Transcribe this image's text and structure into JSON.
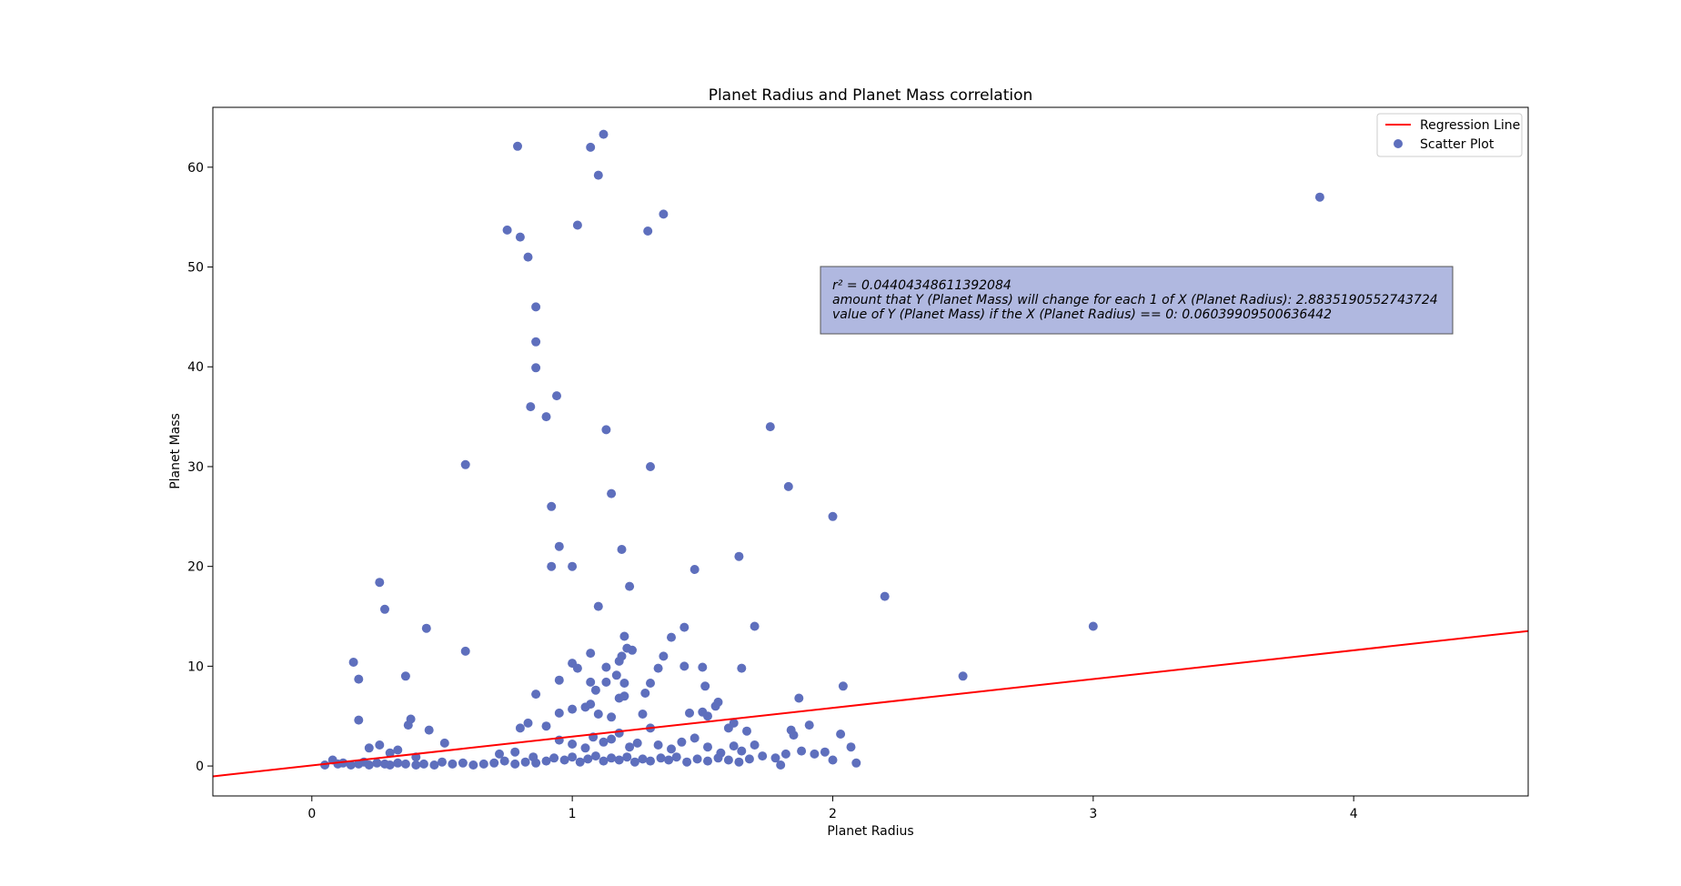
{
  "chart_data": {
    "type": "scatter",
    "title": "Planet Radius and Planet Mass correlation",
    "xlabel": "Planet Radius",
    "ylabel": "Planet Mass",
    "xlim": [
      -0.38,
      4.67
    ],
    "ylim": [
      -3.0,
      66.0
    ],
    "xticks": [
      0,
      1,
      2,
      3,
      4
    ],
    "yticks": [
      0,
      10,
      20,
      30,
      40,
      50,
      60
    ],
    "grid": false,
    "legend_placement": "top-right",
    "legend": [
      {
        "label": "Regression Line",
        "kind": "line",
        "color": "#ff0000"
      },
      {
        "label": "Scatter Plot",
        "kind": "marker",
        "color": "#5e6fbd"
      }
    ],
    "annotation": {
      "lines": [
        "r² = 0.04404348611392084",
        "amount that Y (Planet Mass) will change for each 1 of X (Planet Radius): 2.8835190552743724",
        "value of Y (Planet Mass) if the X (Planet Radius) == 0: 0.06039909500636442"
      ],
      "box_color": "#b0b8e0"
    },
    "regression": {
      "slope": 2.8835190552743724,
      "intercept": 0.06039909500636442,
      "color": "#ff0000"
    },
    "scatter": {
      "color": "#5e6fbd",
      "points": [
        [
          0.79,
          62.1
        ],
        [
          1.07,
          62.0
        ],
        [
          1.12,
          63.3
        ],
        [
          1.1,
          59.2
        ],
        [
          0.75,
          53.7
        ],
        [
          0.8,
          53.0
        ],
        [
          1.02,
          54.2
        ],
        [
          1.29,
          53.6
        ],
        [
          1.35,
          55.3
        ],
        [
          0.83,
          51.0
        ],
        [
          0.86,
          46.0
        ],
        [
          0.86,
          42.5
        ],
        [
          0.86,
          39.9
        ],
        [
          0.94,
          37.1
        ],
        [
          0.84,
          36.0
        ],
        [
          0.9,
          35.0
        ],
        [
          1.13,
          33.7
        ],
        [
          0.59,
          30.2
        ],
        [
          1.3,
          30.0
        ],
        [
          1.76,
          34.0
        ],
        [
          1.83,
          28.0
        ],
        [
          0.92,
          26.0
        ],
        [
          1.15,
          27.3
        ],
        [
          2.0,
          25.0
        ],
        [
          0.95,
          22.0
        ],
        [
          0.92,
          20.0
        ],
        [
          1.0,
          20.0
        ],
        [
          1.19,
          21.7
        ],
        [
          1.47,
          19.7
        ],
        [
          1.64,
          21.0
        ],
        [
          2.2,
          17.0
        ],
        [
          0.26,
          18.4
        ],
        [
          0.28,
          15.7
        ],
        [
          1.1,
          16.0
        ],
        [
          1.22,
          18.0
        ],
        [
          0.44,
          13.8
        ],
        [
          1.2,
          13.0
        ],
        [
          1.38,
          12.9
        ],
        [
          1.43,
          13.9
        ],
        [
          1.7,
          14.0
        ],
        [
          3.0,
          14.0
        ],
        [
          3.87,
          57.0
        ],
        [
          0.16,
          10.4
        ],
        [
          0.18,
          8.7
        ],
        [
          0.36,
          9.0
        ],
        [
          0.59,
          11.5
        ],
        [
          1.0,
          10.3
        ],
        [
          1.02,
          9.8
        ],
        [
          1.07,
          11.3
        ],
        [
          1.13,
          9.9
        ],
        [
          1.18,
          10.5
        ],
        [
          1.19,
          11.0
        ],
        [
          1.21,
          11.8
        ],
        [
          1.23,
          11.6
        ],
        [
          1.33,
          9.8
        ],
        [
          1.35,
          11.0
        ],
        [
          1.43,
          10.0
        ],
        [
          1.5,
          9.9
        ],
        [
          1.65,
          9.8
        ],
        [
          0.86,
          7.2
        ],
        [
          0.95,
          8.6
        ],
        [
          1.07,
          8.4
        ],
        [
          1.09,
          7.6
        ],
        [
          1.13,
          8.4
        ],
        [
          1.17,
          9.1
        ],
        [
          1.2,
          8.3
        ],
        [
          1.3,
          8.3
        ],
        [
          1.51,
          8.0
        ],
        [
          1.87,
          6.8
        ],
        [
          2.04,
          8.0
        ],
        [
          2.5,
          9.0
        ],
        [
          0.18,
          4.6
        ],
        [
          0.37,
          4.1
        ],
        [
          0.38,
          4.7
        ],
        [
          0.45,
          3.6
        ],
        [
          0.51,
          2.3
        ],
        [
          0.8,
          3.8
        ],
        [
          0.83,
          4.3
        ],
        [
          0.9,
          4.0
        ],
        [
          0.95,
          5.3
        ],
        [
          1.0,
          5.7
        ],
        [
          1.05,
          5.9
        ],
        [
          1.07,
          6.2
        ],
        [
          1.1,
          5.2
        ],
        [
          1.15,
          4.9
        ],
        [
          1.18,
          6.8
        ],
        [
          1.2,
          7.0
        ],
        [
          1.27,
          5.2
        ],
        [
          1.28,
          7.3
        ],
        [
          1.45,
          5.3
        ],
        [
          1.5,
          5.4
        ],
        [
          1.52,
          5.0
        ],
        [
          1.55,
          6.0
        ],
        [
          1.56,
          6.4
        ],
        [
          1.6,
          3.8
        ],
        [
          1.62,
          4.3
        ],
        [
          1.67,
          3.5
        ],
        [
          1.84,
          3.6
        ],
        [
          1.85,
          3.1
        ],
        [
          1.91,
          4.1
        ],
        [
          2.03,
          3.2
        ],
        [
          2.07,
          1.9
        ],
        [
          2.09,
          0.3
        ],
        [
          0.26,
          2.1
        ],
        [
          0.3,
          1.3
        ],
        [
          0.33,
          1.6
        ],
        [
          0.4,
          0.9
        ],
        [
          0.22,
          1.8
        ],
        [
          0.72,
          1.2
        ],
        [
          0.78,
          1.4
        ],
        [
          0.85,
          0.9
        ],
        [
          0.95,
          2.6
        ],
        [
          1.0,
          2.2
        ],
        [
          1.05,
          1.8
        ],
        [
          1.08,
          2.9
        ],
        [
          1.12,
          2.4
        ],
        [
          1.15,
          2.7
        ],
        [
          1.18,
          3.3
        ],
        [
          1.22,
          1.9
        ],
        [
          1.25,
          2.3
        ],
        [
          1.3,
          3.8
        ],
        [
          1.33,
          2.1
        ],
        [
          1.38,
          1.7
        ],
        [
          1.42,
          2.4
        ],
        [
          1.47,
          2.8
        ],
        [
          1.52,
          1.9
        ],
        [
          1.57,
          1.3
        ],
        [
          1.62,
          2.0
        ],
        [
          1.65,
          1.5
        ],
        [
          1.7,
          2.1
        ],
        [
          1.73,
          1.0
        ],
        [
          1.78,
          0.8
        ],
        [
          1.82,
          1.2
        ],
        [
          1.88,
          1.5
        ],
        [
          1.93,
          1.2
        ],
        [
          1.97,
          1.4
        ],
        [
          2.0,
          0.6
        ],
        [
          1.8,
          0.1
        ],
        [
          0.05,
          0.1
        ],
        [
          0.08,
          0.6
        ],
        [
          0.1,
          0.2
        ],
        [
          0.12,
          0.3
        ],
        [
          0.15,
          0.1
        ],
        [
          0.18,
          0.2
        ],
        [
          0.2,
          0.4
        ],
        [
          0.22,
          0.1
        ],
        [
          0.25,
          0.3
        ],
        [
          0.28,
          0.2
        ],
        [
          0.3,
          0.1
        ],
        [
          0.33,
          0.3
        ],
        [
          0.36,
          0.2
        ],
        [
          0.4,
          0.1
        ],
        [
          0.43,
          0.2
        ],
        [
          0.47,
          0.1
        ],
        [
          0.5,
          0.4
        ],
        [
          0.54,
          0.2
        ],
        [
          0.58,
          0.3
        ],
        [
          0.62,
          0.1
        ],
        [
          0.66,
          0.2
        ],
        [
          0.7,
          0.3
        ],
        [
          0.74,
          0.5
        ],
        [
          0.78,
          0.2
        ],
        [
          0.82,
          0.4
        ],
        [
          0.86,
          0.3
        ],
        [
          0.9,
          0.5
        ],
        [
          0.93,
          0.8
        ],
        [
          0.97,
          0.6
        ],
        [
          1.0,
          0.9
        ],
        [
          1.03,
          0.4
        ],
        [
          1.06,
          0.7
        ],
        [
          1.09,
          1.0
        ],
        [
          1.12,
          0.5
        ],
        [
          1.15,
          0.8
        ],
        [
          1.18,
          0.6
        ],
        [
          1.21,
          0.9
        ],
        [
          1.24,
          0.4
        ],
        [
          1.27,
          0.7
        ],
        [
          1.3,
          0.5
        ],
        [
          1.34,
          0.8
        ],
        [
          1.37,
          0.6
        ],
        [
          1.4,
          0.9
        ],
        [
          1.44,
          0.4
        ],
        [
          1.48,
          0.7
        ],
        [
          1.52,
          0.5
        ],
        [
          1.56,
          0.8
        ],
        [
          1.6,
          0.6
        ],
        [
          1.64,
          0.4
        ],
        [
          1.68,
          0.7
        ]
      ]
    }
  }
}
